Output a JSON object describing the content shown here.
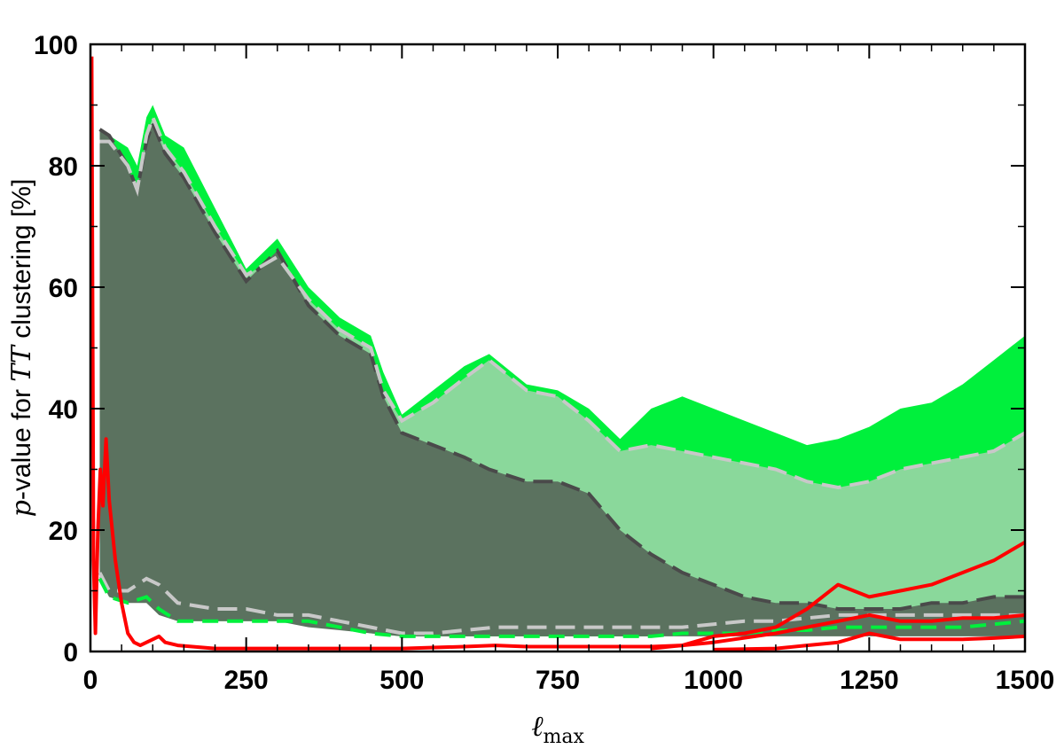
{
  "chart_data": {
    "type": "area",
    "xlabel": "ℓ",
    "xlabel_sub": "max",
    "ylabel_parts": [
      {
        "text": "p",
        "style": "italic-serif"
      },
      {
        "text": "-value for ",
        "style": "normal"
      },
      {
        "text": "TT",
        "style": "italic-serif"
      },
      {
        "text": " clustering [%]",
        "style": "normal"
      }
    ],
    "xlim": [
      0,
      1500
    ],
    "ylim": [
      0,
      100
    ],
    "x_ticks": [
      0,
      250,
      500,
      750,
      1000,
      1250,
      1500
    ],
    "y_ticks": [
      0,
      20,
      40,
      60,
      80,
      100
    ],
    "x_tick_labels": [
      "0",
      "250",
      "500",
      "750",
      "1000",
      "1250",
      "1500"
    ],
    "y_tick_labels": [
      "0",
      "20",
      "40",
      "60",
      "80",
      "100"
    ],
    "grid": false,
    "legend": "none",
    "colors": {
      "bright_green": "#00f03c",
      "light_green": "#8ad89b",
      "dark_gray_green": "#5b725f",
      "dark_gray": "#4a4a4a",
      "light_gray": "#c8c8c8",
      "red": "#ff0000"
    },
    "series": [
      {
        "role": "bright-green-band-upper",
        "x": [
          15,
          30,
          60,
          75,
          90,
          100,
          120,
          150,
          200,
          250,
          300,
          350,
          400,
          450,
          470,
          500,
          550,
          600,
          640,
          700,
          750,
          800,
          850,
          900,
          950,
          1000,
          1050,
          1100,
          1150,
          1200,
          1250,
          1300,
          1350,
          1400,
          1450,
          1500
        ],
        "values": [
          85,
          85,
          83,
          80,
          88,
          90,
          85,
          83,
          73,
          63,
          68,
          60,
          55,
          52,
          46,
          39,
          43,
          47,
          49,
          44,
          43,
          40,
          35,
          40,
          42,
          40,
          38,
          36,
          34,
          35,
          37,
          40,
          41,
          44,
          48,
          52
        ]
      },
      {
        "role": "light-green-band-upper",
        "x": [
          15,
          30,
          60,
          75,
          90,
          100,
          120,
          150,
          200,
          250,
          300,
          350,
          400,
          450,
          470,
          500,
          550,
          600,
          640,
          700,
          750,
          800,
          850,
          900,
          950,
          1000,
          1050,
          1100,
          1150,
          1200,
          1250,
          1300,
          1350,
          1400,
          1450,
          1500
        ],
        "values": [
          84,
          84,
          80,
          76,
          85,
          88,
          83,
          79,
          70,
          62,
          65,
          58,
          53,
          50,
          43,
          38,
          41,
          45,
          48,
          43,
          42,
          38,
          33,
          34,
          33,
          32,
          31,
          30,
          28,
          27,
          28,
          30,
          31,
          32,
          33,
          36
        ]
      },
      {
        "role": "dark-band-upper",
        "x": [
          15,
          30,
          60,
          75,
          90,
          100,
          120,
          150,
          200,
          250,
          300,
          350,
          400,
          450,
          470,
          500,
          550,
          600,
          640,
          700,
          750,
          800,
          850,
          900,
          950,
          1000,
          1050,
          1100,
          1150,
          1200,
          1250,
          1300,
          1350,
          1400,
          1450,
          1500
        ],
        "values": [
          86,
          85,
          80,
          76,
          84,
          87,
          82,
          78,
          69,
          61,
          66,
          57,
          52,
          49,
          42,
          36,
          34,
          32,
          30,
          28,
          28,
          26,
          20,
          16,
          13,
          11,
          9,
          8,
          8,
          7,
          7,
          7,
          8,
          8,
          9,
          9
        ]
      },
      {
        "role": "light-green-band-lower",
        "x": [
          15,
          30,
          60,
          90,
          110,
          140,
          200,
          250,
          300,
          350,
          400,
          450,
          500,
          550,
          600,
          650,
          700,
          750,
          800,
          850,
          900,
          950,
          1000,
          1050,
          1100,
          1150,
          1200,
          1250,
          1300,
          1350,
          1400,
          1450,
          1500
        ],
        "values": [
          13,
          10,
          10,
          12,
          11,
          8,
          7,
          7,
          6,
          6,
          5,
          4,
          3,
          3,
          3.5,
          4,
          4,
          4,
          4,
          4,
          4,
          4,
          4.5,
          5,
          5,
          5.5,
          6,
          6,
          6,
          6,
          6,
          6,
          6
        ]
      },
      {
        "role": "bright-green-band-lower",
        "x": [
          15,
          30,
          60,
          90,
          110,
          140,
          200,
          250,
          300,
          350,
          400,
          450,
          500,
          550,
          600,
          650,
          700,
          750,
          800,
          850,
          900,
          950,
          1000,
          1050,
          1100,
          1150,
          1200,
          1250,
          1300,
          1350,
          1400,
          1450,
          1500
        ],
        "values": [
          12,
          9,
          8,
          9,
          7,
          5,
          5,
          5,
          5,
          5,
          4,
          3,
          2.5,
          2.5,
          2.5,
          2.5,
          2.5,
          2.5,
          2.5,
          2.5,
          2.5,
          3,
          3,
          3,
          3.5,
          3.5,
          4,
          4,
          4,
          4,
          4,
          4.5,
          5
        ]
      },
      {
        "role": "dark-band-lower",
        "x": [
          15,
          30,
          60,
          90,
          110,
          140,
          200,
          250,
          300,
          350,
          400,
          450,
          500,
          550,
          600,
          650,
          700,
          750,
          800,
          850,
          900,
          950,
          1000,
          1050,
          1100,
          1150,
          1200,
          1250,
          1300,
          1350,
          1400,
          1450,
          1500
        ],
        "values": [
          12,
          9,
          8,
          8,
          6,
          5,
          5,
          5,
          5,
          4,
          3.5,
          3,
          2.5,
          2.5,
          2.5,
          2.5,
          2.5,
          2.5,
          2.5,
          2.5,
          2.5,
          2.5,
          2.5,
          2.5,
          2.5,
          2.5,
          2.5,
          2.5,
          2.5,
          2.5,
          2.5,
          2.5,
          2.5
        ]
      },
      {
        "role": "red-curve-1",
        "x": [
          2,
          5,
          8,
          12,
          16,
          20,
          25,
          30,
          40,
          50,
          60,
          70,
          80,
          100,
          110,
          120,
          140,
          200,
          300,
          400,
          500,
          600,
          650,
          700,
          800,
          900,
          950,
          1000,
          1050,
          1100,
          1150,
          1200,
          1250,
          1300,
          1350,
          1400,
          1450,
          1500
        ],
        "values": [
          98,
          15,
          3,
          20,
          30,
          24,
          35,
          25,
          15,
          8,
          3,
          1.5,
          1,
          2,
          2.5,
          1.5,
          1,
          0.5,
          0.5,
          0.5,
          0.5,
          0.8,
          1,
          0.8,
          0.8,
          0.8,
          1,
          2.5,
          3,
          4,
          7,
          11,
          9,
          10,
          11,
          13,
          15,
          18
        ]
      },
      {
        "role": "red-curve-2",
        "x": [
          900,
          1000,
          1100,
          1150,
          1200,
          1250,
          1300,
          1350,
          1400,
          1450,
          1500
        ],
        "values": [
          0.5,
          1.5,
          3,
          4,
          5,
          6,
          5,
          5,
          5.5,
          5.5,
          6
        ]
      },
      {
        "role": "red-curve-3",
        "x": [
          1000,
          1100,
          1150,
          1200,
          1250,
          1300,
          1350,
          1400,
          1450,
          1500
        ],
        "values": [
          0.3,
          0.5,
          1,
          1.5,
          3,
          2,
          2,
          2,
          2.2,
          2.5
        ]
      }
    ]
  }
}
